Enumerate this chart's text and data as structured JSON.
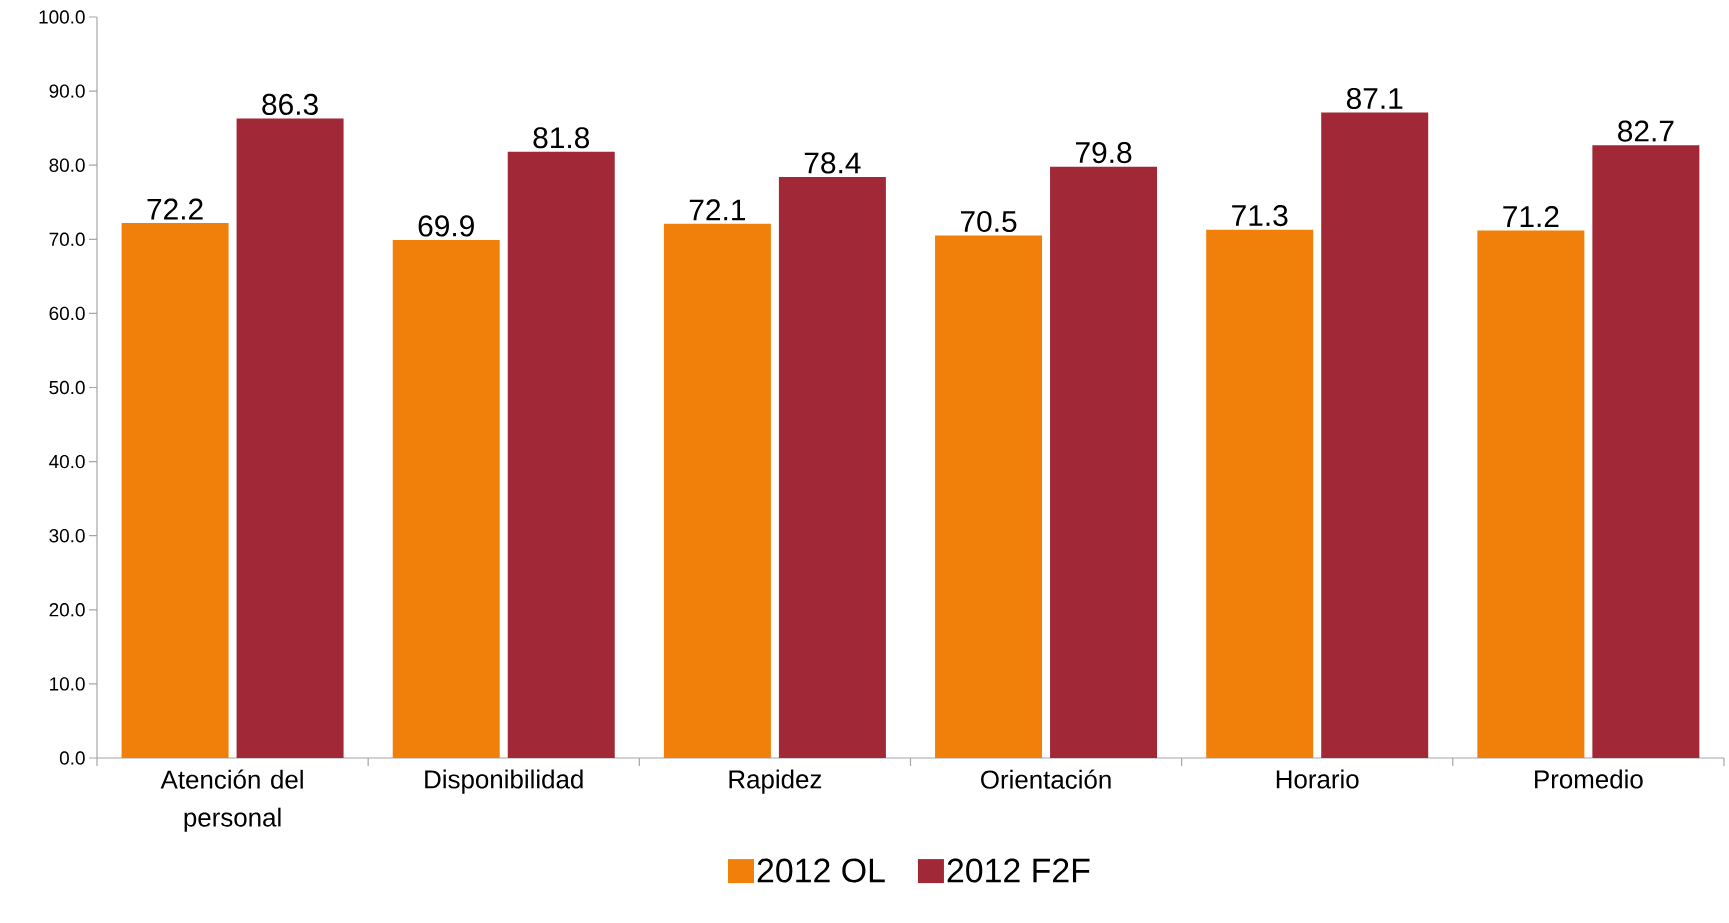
{
  "chart_data": {
    "type": "bar",
    "categories": [
      "Atención del personal",
      "Disponibilidad",
      "Rapidez",
      "Orientación",
      "Horario",
      "Promedio"
    ],
    "series": [
      {
        "name": "2012 OL",
        "color": "#f0800a",
        "values": [
          72.2,
          69.9,
          72.1,
          70.5,
          71.3,
          71.2
        ]
      },
      {
        "name": "2012 F2F",
        "color": "#a02837",
        "values": [
          86.3,
          81.8,
          78.4,
          79.8,
          87.1,
          82.7
        ]
      }
    ],
    "ylim": [
      0,
      100
    ],
    "yticks": [
      {
        "value": 0,
        "label": "0.0"
      },
      {
        "value": 10,
        "label": "10.0"
      },
      {
        "value": 20,
        "label": "20.0"
      },
      {
        "value": 30,
        "label": "30.0"
      },
      {
        "value": 40,
        "label": "40.0"
      },
      {
        "value": 50,
        "label": "50.0"
      },
      {
        "value": 60,
        "label": "60.0"
      },
      {
        "value": 70,
        "label": "70.0"
      },
      {
        "value": 80,
        "label": "80.0"
      },
      {
        "value": 90,
        "label": "90.0"
      },
      {
        "value": 100,
        "label": "100.0"
      }
    ],
    "data_labels": true,
    "grid": false,
    "legend": "bottom"
  }
}
